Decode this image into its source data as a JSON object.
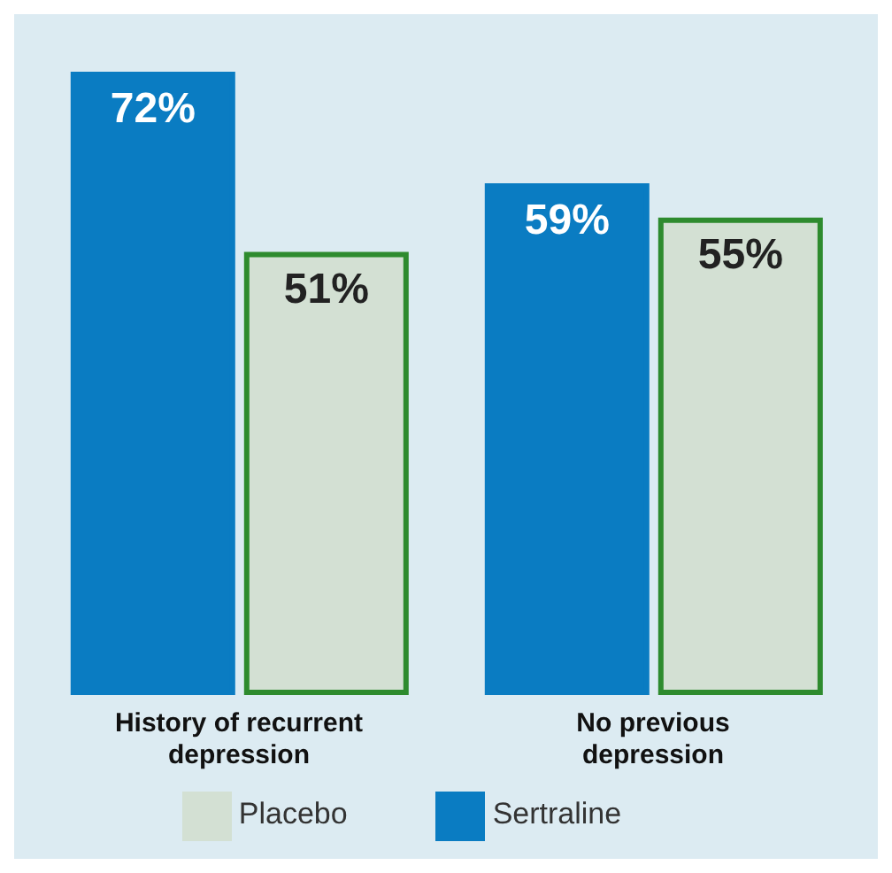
{
  "chart_data": {
    "type": "bar",
    "categories": [
      "History of recurrent depression",
      "No previous depression"
    ],
    "series": [
      {
        "name": "Sertraline",
        "color": "#0a7cc2",
        "values": [
          72,
          59
        ],
        "value_labels": [
          "72%",
          "59%"
        ]
      },
      {
        "name": "Placebo",
        "color": "#d3e0d3",
        "values": [
          51,
          55
        ],
        "value_labels": [
          "51%",
          "55%"
        ]
      }
    ],
    "legend": "bottom",
    "grid": false
  }
}
